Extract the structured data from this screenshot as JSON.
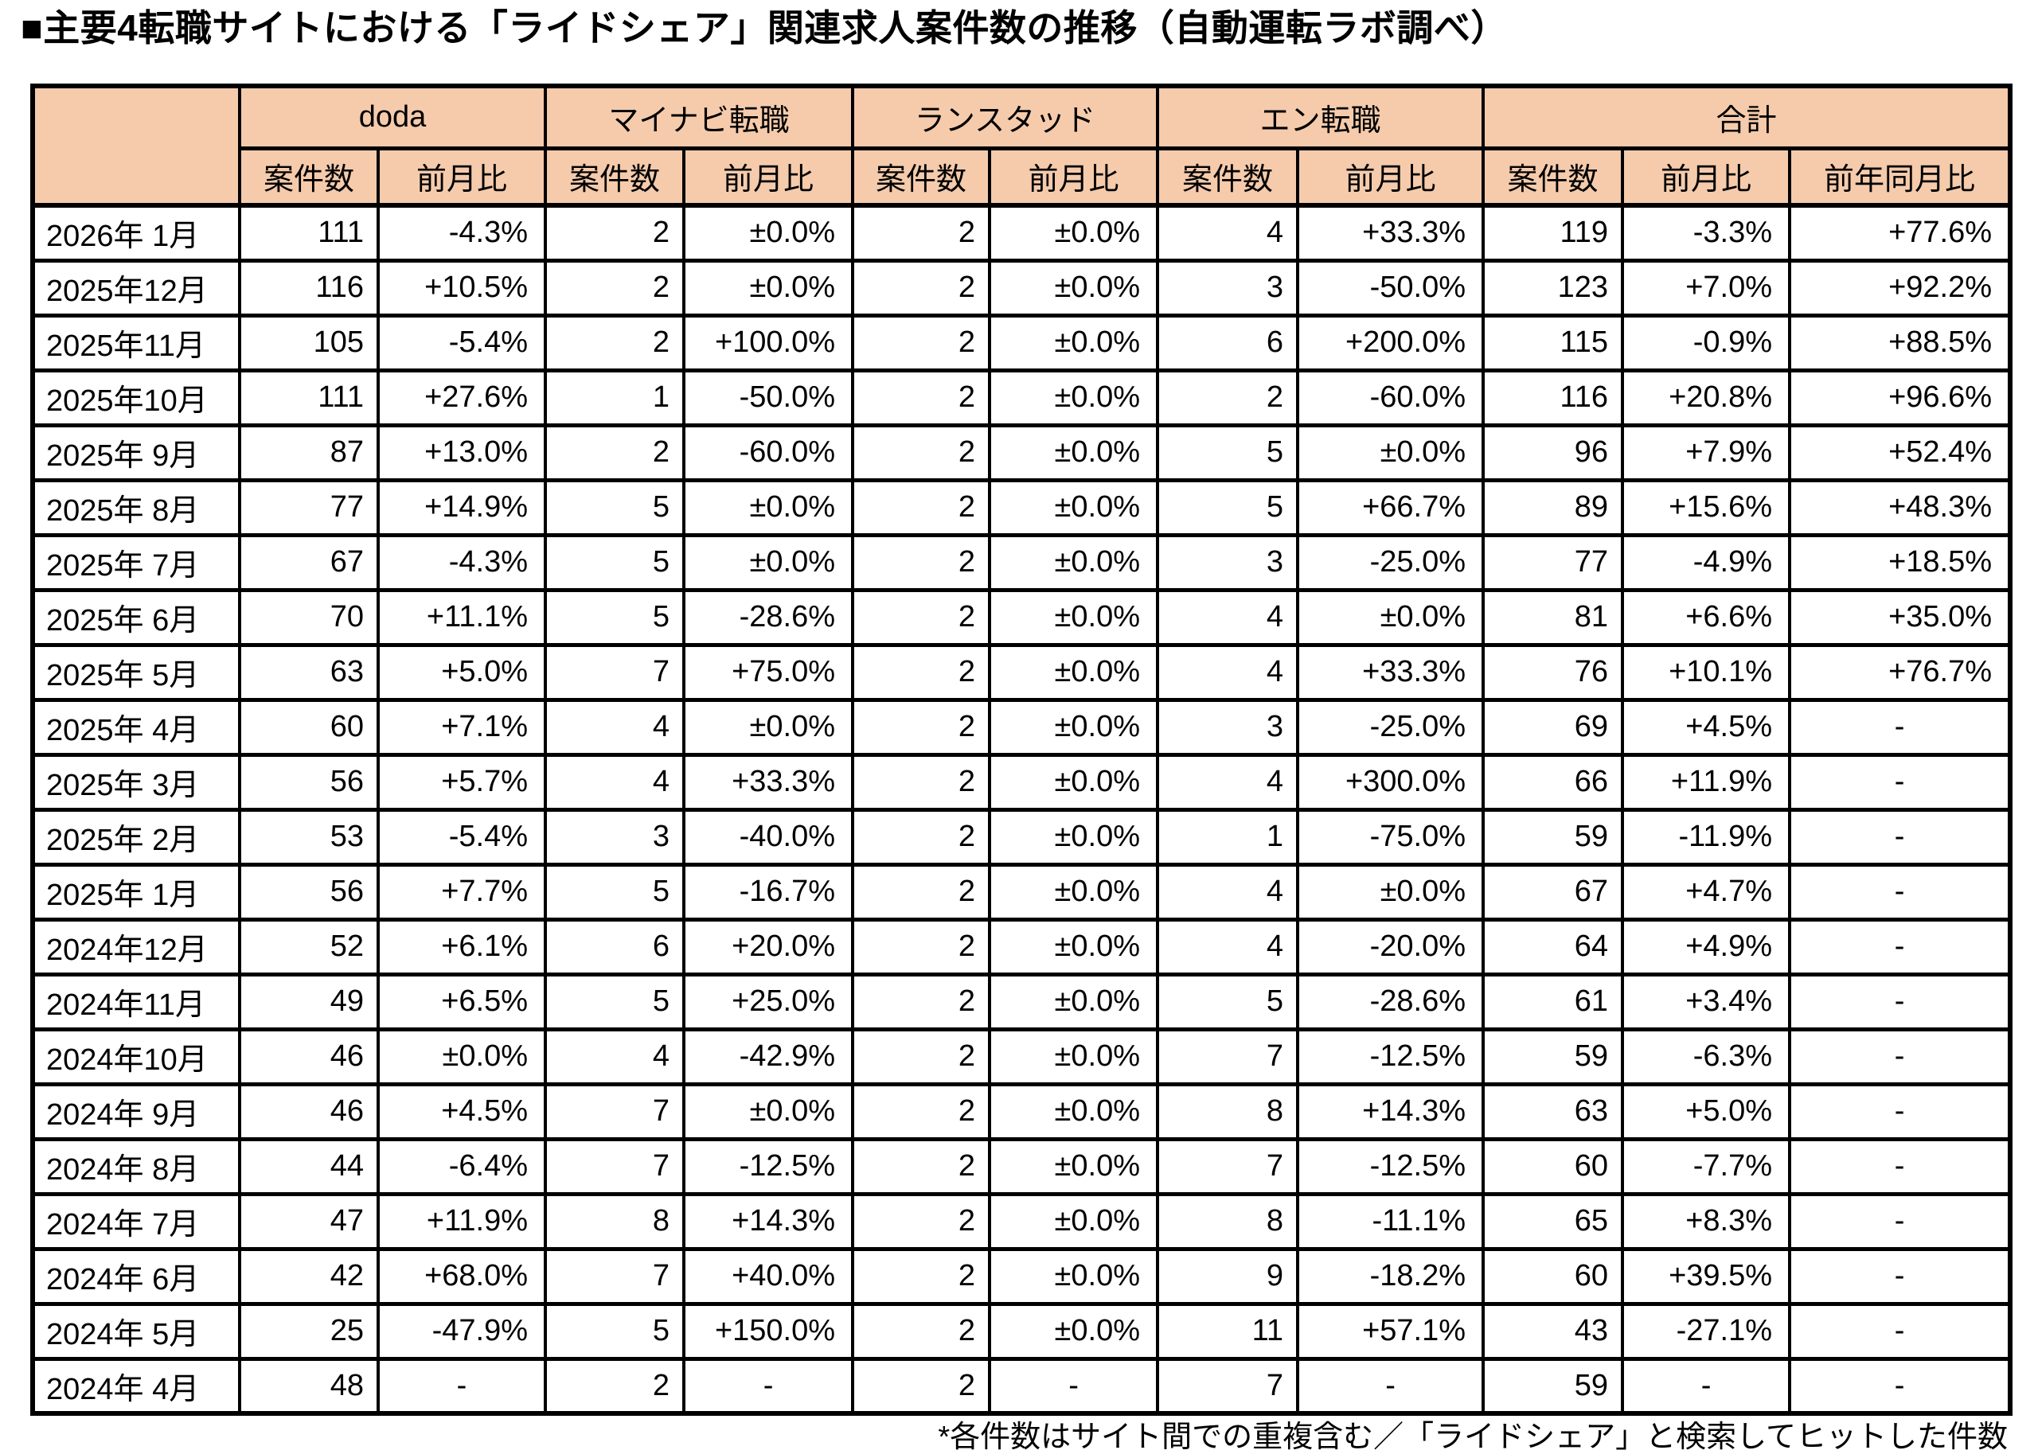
{
  "title": "■主要4転職サイトにおける「ライドシェア」関連求人案件数の推移（自動運転ラボ調べ）",
  "footnote": "*各件数はサイト間での重複含む／「ライドシェア」と検索してヒットした件数",
  "colors": {
    "header_bg": "#F5CBAC",
    "border": "#000000",
    "row_bg": "#FFFFFF"
  },
  "chart_data": {
    "type": "table",
    "title": "主要4転職サイトにおける「ライドシェア」関連求人案件数の推移（自動運転ラボ調べ）",
    "corner_label": "",
    "groups": [
      {
        "label": "doda",
        "subcolumns": [
          "案件数",
          "前月比"
        ]
      },
      {
        "label": "マイナビ転職",
        "subcolumns": [
          "案件数",
          "前月比"
        ]
      },
      {
        "label": "ランスタッド",
        "subcolumns": [
          "案件数",
          "前月比"
        ]
      },
      {
        "label": "エン転職",
        "subcolumns": [
          "案件数",
          "前月比"
        ]
      },
      {
        "label": "合計",
        "subcolumns": [
          "案件数",
          "前月比",
          "前年同月比"
        ]
      }
    ],
    "rows": [
      {
        "month": "2026年 1月",
        "values": [
          "111",
          "-4.3%",
          "2",
          "±0.0%",
          "2",
          "±0.0%",
          "4",
          "+33.3%",
          "119",
          "-3.3%",
          "+77.6%"
        ]
      },
      {
        "month": "2025年12月",
        "values": [
          "116",
          "+10.5%",
          "2",
          "±0.0%",
          "2",
          "±0.0%",
          "3",
          "-50.0%",
          "123",
          "+7.0%",
          "+92.2%"
        ]
      },
      {
        "month": "2025年11月",
        "values": [
          "105",
          "-5.4%",
          "2",
          "+100.0%",
          "2",
          "±0.0%",
          "6",
          "+200.0%",
          "115",
          "-0.9%",
          "+88.5%"
        ]
      },
      {
        "month": "2025年10月",
        "values": [
          "111",
          "+27.6%",
          "1",
          "-50.0%",
          "2",
          "±0.0%",
          "2",
          "-60.0%",
          "116",
          "+20.8%",
          "+96.6%"
        ]
      },
      {
        "month": "2025年 9月",
        "values": [
          "87",
          "+13.0%",
          "2",
          "-60.0%",
          "2",
          "±0.0%",
          "5",
          "±0.0%",
          "96",
          "+7.9%",
          "+52.4%"
        ]
      },
      {
        "month": "2025年 8月",
        "values": [
          "77",
          "+14.9%",
          "5",
          "±0.0%",
          "2",
          "±0.0%",
          "5",
          "+66.7%",
          "89",
          "+15.6%",
          "+48.3%"
        ]
      },
      {
        "month": "2025年 7月",
        "values": [
          "67",
          "-4.3%",
          "5",
          "±0.0%",
          "2",
          "±0.0%",
          "3",
          "-25.0%",
          "77",
          "-4.9%",
          "+18.5%"
        ]
      },
      {
        "month": "2025年 6月",
        "values": [
          "70",
          "+11.1%",
          "5",
          "-28.6%",
          "2",
          "±0.0%",
          "4",
          "±0.0%",
          "81",
          "+6.6%",
          "+35.0%"
        ]
      },
      {
        "month": "2025年 5月",
        "values": [
          "63",
          "+5.0%",
          "7",
          "+75.0%",
          "2",
          "±0.0%",
          "4",
          "+33.3%",
          "76",
          "+10.1%",
          "+76.7%"
        ]
      },
      {
        "month": "2025年 4月",
        "values": [
          "60",
          "+7.1%",
          "4",
          "±0.0%",
          "2",
          "±0.0%",
          "3",
          "-25.0%",
          "69",
          "+4.5%",
          "-"
        ]
      },
      {
        "month": "2025年 3月",
        "values": [
          "56",
          "+5.7%",
          "4",
          "+33.3%",
          "2",
          "±0.0%",
          "4",
          "+300.0%",
          "66",
          "+11.9%",
          "-"
        ]
      },
      {
        "month": "2025年 2月",
        "values": [
          "53",
          "-5.4%",
          "3",
          "-40.0%",
          "2",
          "±0.0%",
          "1",
          "-75.0%",
          "59",
          "-11.9%",
          "-"
        ]
      },
      {
        "month": "2025年 1月",
        "values": [
          "56",
          "+7.7%",
          "5",
          "-16.7%",
          "2",
          "±0.0%",
          "4",
          "±0.0%",
          "67",
          "+4.7%",
          "-"
        ]
      },
      {
        "month": "2024年12月",
        "values": [
          "52",
          "+6.1%",
          "6",
          "+20.0%",
          "2",
          "±0.0%",
          "4",
          "-20.0%",
          "64",
          "+4.9%",
          "-"
        ]
      },
      {
        "month": "2024年11月",
        "values": [
          "49",
          "+6.5%",
          "5",
          "+25.0%",
          "2",
          "±0.0%",
          "5",
          "-28.6%",
          "61",
          "+3.4%",
          "-"
        ]
      },
      {
        "month": "2024年10月",
        "values": [
          "46",
          "±0.0%",
          "4",
          "-42.9%",
          "2",
          "±0.0%",
          "7",
          "-12.5%",
          "59",
          "-6.3%",
          "-"
        ]
      },
      {
        "month": "2024年 9月",
        "values": [
          "46",
          "+4.5%",
          "7",
          "±0.0%",
          "2",
          "±0.0%",
          "8",
          "+14.3%",
          "63",
          "+5.0%",
          "-"
        ]
      },
      {
        "month": "2024年 8月",
        "values": [
          "44",
          "-6.4%",
          "7",
          "-12.5%",
          "2",
          "±0.0%",
          "7",
          "-12.5%",
          "60",
          "-7.7%",
          "-"
        ]
      },
      {
        "month": "2024年 7月",
        "values": [
          "47",
          "+11.9%",
          "8",
          "+14.3%",
          "2",
          "±0.0%",
          "8",
          "-11.1%",
          "65",
          "+8.3%",
          "-"
        ]
      },
      {
        "month": "2024年 6月",
        "values": [
          "42",
          "+68.0%",
          "7",
          "+40.0%",
          "2",
          "±0.0%",
          "9",
          "-18.2%",
          "60",
          "+39.5%",
          "-"
        ]
      },
      {
        "month": "2024年 5月",
        "values": [
          "25",
          "-47.9%",
          "5",
          "+150.0%",
          "2",
          "±0.0%",
          "11",
          "+57.1%",
          "43",
          "-27.1%",
          "-"
        ]
      },
      {
        "month": "2024年 4月",
        "values": [
          "48",
          "-",
          "2",
          "-",
          "2",
          "-",
          "7",
          "-",
          "59",
          "-",
          "-"
        ]
      }
    ]
  }
}
